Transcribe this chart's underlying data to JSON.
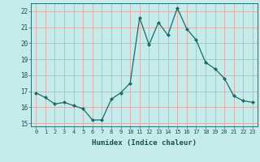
{
  "x": [
    0,
    1,
    2,
    3,
    4,
    5,
    6,
    7,
    8,
    9,
    10,
    11,
    12,
    13,
    14,
    15,
    16,
    17,
    18,
    19,
    20,
    21,
    22,
    23
  ],
  "y": [
    16.9,
    16.6,
    16.2,
    16.3,
    16.1,
    15.9,
    15.2,
    15.2,
    16.5,
    16.9,
    17.5,
    21.6,
    19.9,
    21.3,
    20.5,
    22.2,
    20.9,
    20.2,
    18.8,
    18.4,
    17.8,
    16.7,
    16.4,
    16.3
  ],
  "xlim": [
    -0.5,
    23.5
  ],
  "ylim": [
    14.8,
    22.5
  ],
  "yticks": [
    15,
    16,
    17,
    18,
    19,
    20,
    21,
    22
  ],
  "xticks": [
    0,
    1,
    2,
    3,
    4,
    5,
    6,
    7,
    8,
    9,
    10,
    11,
    12,
    13,
    14,
    15,
    16,
    17,
    18,
    19,
    20,
    21,
    22,
    23
  ],
  "xlabel": "Humidex (Indice chaleur)",
  "line_color": "#1a6b6b",
  "marker": "D",
  "marker_size": 2.0,
  "bg_color": "#c5ecea",
  "grid_color": "#dba8a8",
  "tick_color": "#1a5050",
  "label_color": "#1a5050",
  "fig_bg": "#c5ecea",
  "spine_color": "#2a7070"
}
